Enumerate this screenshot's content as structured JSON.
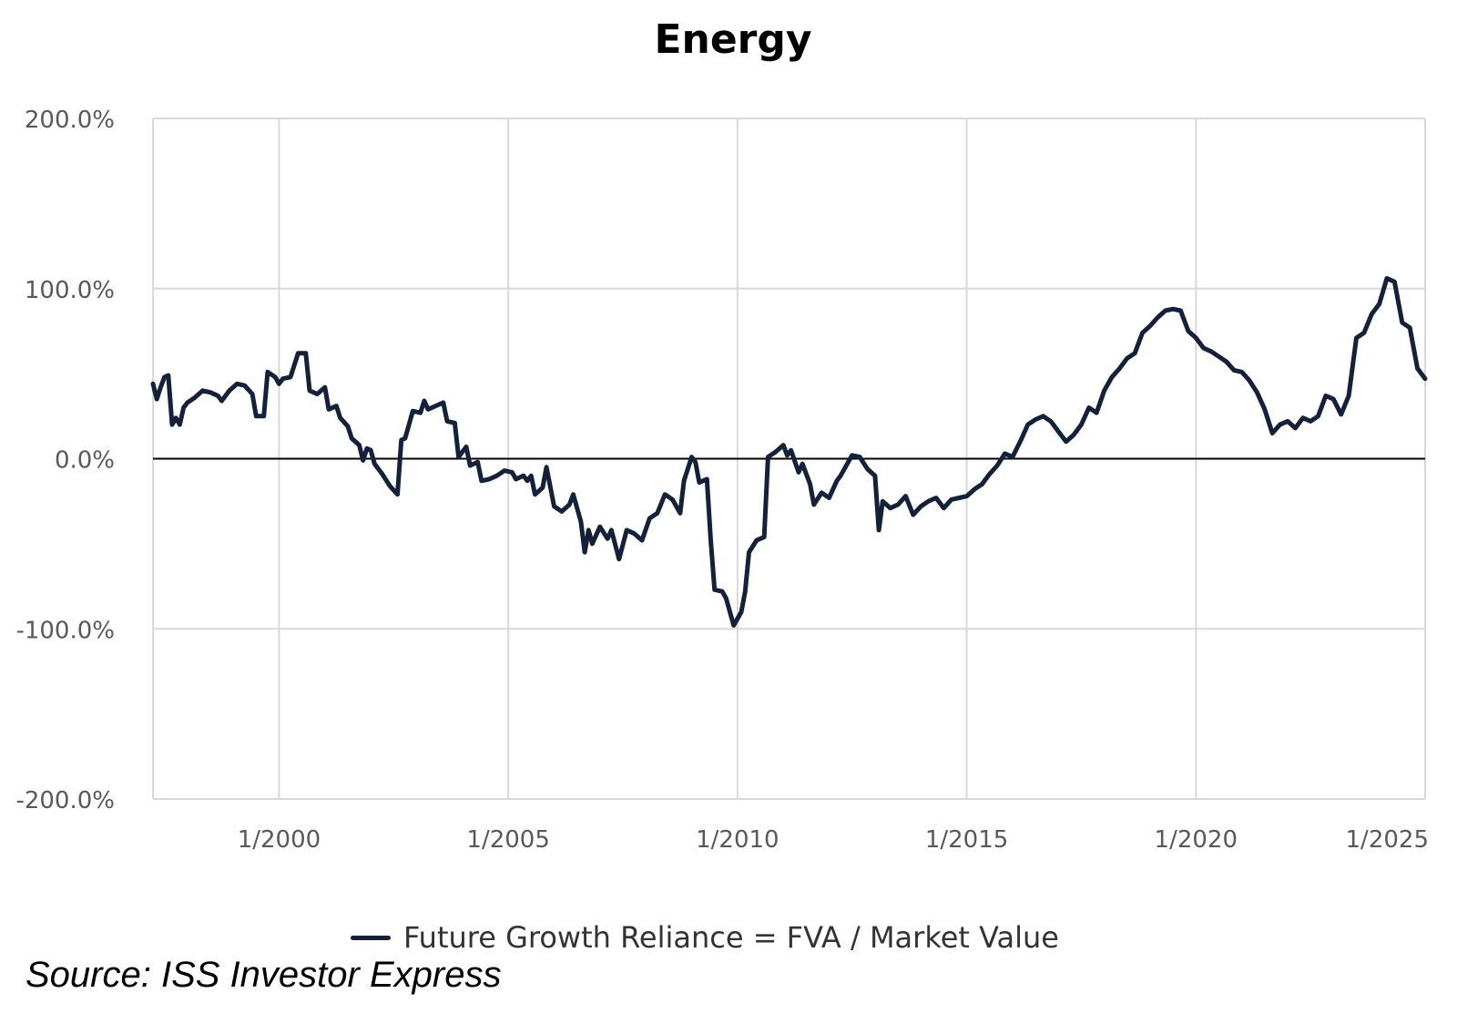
{
  "title": "Energy",
  "source": "Source: ISS Investor Express",
  "colors": {
    "line": "#13213b",
    "grid": "#d9d9d9",
    "zero_line": "#000000",
    "tick_text": "#595959"
  },
  "chart_data": {
    "type": "line",
    "title": "Energy",
    "xlabel": "",
    "ylabel": "",
    "ylim": [
      -200,
      200
    ],
    "xlim": [
      "1997-04",
      "2025-01"
    ],
    "y_ticks": [
      "200.0%",
      "100.0%",
      "0.0%",
      "-100.0%",
      "-200.0%"
    ],
    "y_tick_values": [
      200,
      100,
      0,
      -100,
      -200
    ],
    "x_ticks": [
      "1/2000",
      "1/2005",
      "1/2010",
      "1/2015",
      "1/2020",
      "1/2025"
    ],
    "x_tick_values": [
      "2000-01",
      "2005-01",
      "2010-01",
      "2015-01",
      "2020-01",
      "2025-01"
    ],
    "grid": true,
    "legend_position": "bottom",
    "series": [
      {
        "name": "Future Growth Reliance = FVA / Market Value",
        "points": [
          [
            "1997-04",
            44
          ],
          [
            "1997-05",
            35
          ],
          [
            "1997-06",
            42
          ],
          [
            "1997-07",
            48
          ],
          [
            "1997-08",
            49
          ],
          [
            "1997-09",
            20
          ],
          [
            "1997-10",
            24
          ],
          [
            "1997-11",
            20
          ],
          [
            "1997-12",
            30
          ],
          [
            "1998-01",
            33
          ],
          [
            "1998-03",
            36
          ],
          [
            "1998-05",
            40
          ],
          [
            "1998-07",
            39
          ],
          [
            "1998-09",
            37
          ],
          [
            "1998-10",
            34
          ],
          [
            "1998-12",
            40
          ],
          [
            "1999-02",
            44
          ],
          [
            "1999-04",
            43
          ],
          [
            "1999-06",
            38
          ],
          [
            "1999-07",
            25
          ],
          [
            "1999-09",
            25
          ],
          [
            "1999-10",
            51
          ],
          [
            "1999-12",
            48
          ],
          [
            "2000-01",
            44
          ],
          [
            "2000-02",
            47
          ],
          [
            "2000-04",
            48
          ],
          [
            "2000-06",
            62
          ],
          [
            "2000-08",
            62
          ],
          [
            "2000-09",
            40
          ],
          [
            "2000-11",
            38
          ],
          [
            "2001-01",
            42
          ],
          [
            "2001-02",
            29
          ],
          [
            "2001-04",
            31
          ],
          [
            "2001-05",
            24
          ],
          [
            "2001-07",
            19
          ],
          [
            "2001-08",
            12
          ],
          [
            "2001-10",
            8
          ],
          [
            "2001-11",
            -1
          ],
          [
            "2001-12",
            6
          ],
          [
            "2002-01",
            5
          ],
          [
            "2002-02",
            -3
          ],
          [
            "2002-04",
            -9
          ],
          [
            "2002-06",
            -16
          ],
          [
            "2002-08",
            -21
          ],
          [
            "2002-09",
            11
          ],
          [
            "2002-10",
            12
          ],
          [
            "2002-12",
            28
          ],
          [
            "2003-02",
            27
          ],
          [
            "2003-03",
            34
          ],
          [
            "2003-04",
            29
          ],
          [
            "2003-06",
            31
          ],
          [
            "2003-08",
            33
          ],
          [
            "2003-09",
            22
          ],
          [
            "2003-11",
            21
          ],
          [
            "2003-12",
            1
          ],
          [
            "2004-02",
            7
          ],
          [
            "2004-03",
            -4
          ],
          [
            "2004-05",
            -2
          ],
          [
            "2004-06",
            -13
          ],
          [
            "2004-08",
            -12
          ],
          [
            "2004-10",
            -10
          ],
          [
            "2004-12",
            -7
          ],
          [
            "2005-02",
            -8
          ],
          [
            "2005-03",
            -12
          ],
          [
            "2005-05",
            -10
          ],
          [
            "2005-06",
            -13
          ],
          [
            "2005-07",
            -10
          ],
          [
            "2005-08",
            -21
          ],
          [
            "2005-10",
            -17
          ],
          [
            "2005-11",
            -5
          ],
          [
            "2006-01",
            -28
          ],
          [
            "2006-03",
            -31
          ],
          [
            "2006-05",
            -27
          ],
          [
            "2006-06",
            -21
          ],
          [
            "2006-08",
            -37
          ],
          [
            "2006-09",
            -55
          ],
          [
            "2006-10",
            -42
          ],
          [
            "2006-11",
            -50
          ],
          [
            "2007-01",
            -40
          ],
          [
            "2007-03",
            -47
          ],
          [
            "2007-04",
            -42
          ],
          [
            "2007-06",
            -59
          ],
          [
            "2007-08",
            -42
          ],
          [
            "2007-10",
            -44
          ],
          [
            "2007-12",
            -48
          ],
          [
            "2008-02",
            -35
          ],
          [
            "2008-04",
            -32
          ],
          [
            "2008-06",
            -21
          ],
          [
            "2008-08",
            -24
          ],
          [
            "2008-10",
            -32
          ],
          [
            "2008-11",
            -13
          ],
          [
            "2009-01",
            1
          ],
          [
            "2009-02",
            -2
          ],
          [
            "2009-03",
            -14
          ],
          [
            "2009-05",
            -12
          ],
          [
            "2009-06",
            -48
          ],
          [
            "2009-07",
            -77
          ],
          [
            "2009-09",
            -78
          ],
          [
            "2009-10",
            -82
          ],
          [
            "2009-12",
            -98
          ],
          [
            "2010-02",
            -90
          ],
          [
            "2010-03",
            -78
          ],
          [
            "2010-04",
            -55
          ],
          [
            "2010-06",
            -48
          ],
          [
            "2010-08",
            -46
          ],
          [
            "2010-09",
            1
          ],
          [
            "2010-11",
            4
          ],
          [
            "2011-01",
            8
          ],
          [
            "2011-02",
            2
          ],
          [
            "2011-03",
            5
          ],
          [
            "2011-05",
            -8
          ],
          [
            "2011-06",
            -3
          ],
          [
            "2011-08",
            -15
          ],
          [
            "2011-09",
            -27
          ],
          [
            "2011-11",
            -20
          ],
          [
            "2012-01",
            -23
          ],
          [
            "2012-03",
            -13
          ],
          [
            "2012-04",
            -10
          ],
          [
            "2012-06",
            -2
          ],
          [
            "2012-07",
            2
          ],
          [
            "2012-09",
            1
          ],
          [
            "2012-11",
            -6
          ],
          [
            "2013-01",
            -10
          ],
          [
            "2013-02",
            -42
          ],
          [
            "2013-03",
            -25
          ],
          [
            "2013-05",
            -29
          ],
          [
            "2013-07",
            -27
          ],
          [
            "2013-09",
            -22
          ],
          [
            "2013-11",
            -33
          ],
          [
            "2014-01",
            -28
          ],
          [
            "2014-03",
            -25
          ],
          [
            "2014-05",
            -23
          ],
          [
            "2014-07",
            -29
          ],
          [
            "2014-09",
            -24
          ],
          [
            "2014-11",
            -23
          ],
          [
            "2015-01",
            -22
          ],
          [
            "2015-03",
            -18
          ],
          [
            "2015-05",
            -15
          ],
          [
            "2015-07",
            -9
          ],
          [
            "2015-09",
            -4
          ],
          [
            "2015-11",
            3
          ],
          [
            "2016-01",
            1
          ],
          [
            "2016-03",
            10
          ],
          [
            "2016-05",
            20
          ],
          [
            "2016-07",
            23
          ],
          [
            "2016-09",
            25
          ],
          [
            "2016-11",
            22
          ],
          [
            "2017-01",
            16
          ],
          [
            "2017-03",
            10
          ],
          [
            "2017-05",
            14
          ],
          [
            "2017-07",
            20
          ],
          [
            "2017-09",
            30
          ],
          [
            "2017-11",
            27
          ],
          [
            "2018-01",
            40
          ],
          [
            "2018-03",
            48
          ],
          [
            "2018-05",
            53
          ],
          [
            "2018-07",
            59
          ],
          [
            "2018-09",
            62
          ],
          [
            "2018-11",
            74
          ],
          [
            "2019-01",
            78
          ],
          [
            "2019-03",
            83
          ],
          [
            "2019-05",
            87
          ],
          [
            "2019-07",
            88
          ],
          [
            "2019-09",
            87
          ],
          [
            "2019-11",
            75
          ],
          [
            "2020-01",
            71
          ],
          [
            "2020-03",
            65
          ],
          [
            "2020-05",
            63
          ],
          [
            "2020-07",
            60
          ],
          [
            "2020-09",
            57
          ],
          [
            "2020-11",
            52
          ],
          [
            "2021-01",
            51
          ],
          [
            "2021-03",
            46
          ],
          [
            "2021-05",
            39
          ],
          [
            "2021-07",
            29
          ],
          [
            "2021-09",
            15
          ],
          [
            "2021-11",
            20
          ],
          [
            "2022-01",
            22
          ],
          [
            "2022-03",
            18
          ],
          [
            "2022-05",
            24
          ],
          [
            "2022-07",
            22
          ],
          [
            "2022-09",
            25
          ],
          [
            "2022-11",
            37
          ],
          [
            "2023-01",
            35
          ],
          [
            "2023-03",
            26
          ],
          [
            "2023-05",
            37
          ],
          [
            "2023-07",
            71
          ],
          [
            "2023-09",
            74
          ],
          [
            "2023-11",
            85
          ],
          [
            "2024-01",
            91
          ],
          [
            "2024-03",
            106
          ],
          [
            "2024-05",
            104
          ],
          [
            "2024-07",
            80
          ],
          [
            "2024-09",
            77
          ],
          [
            "2024-11",
            53
          ],
          [
            "2025-01",
            47
          ]
        ]
      }
    ]
  }
}
